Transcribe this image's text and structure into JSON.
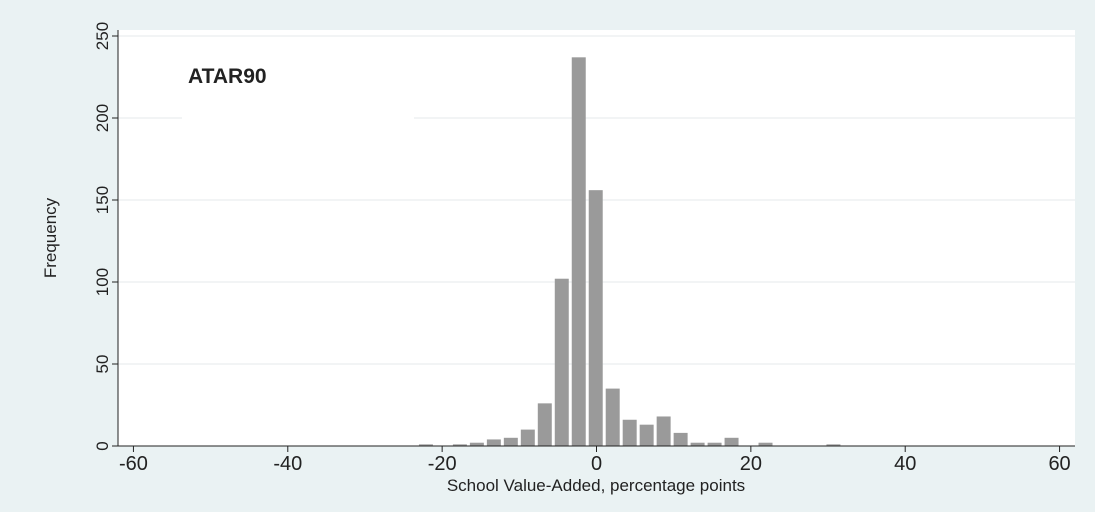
{
  "chart_data": {
    "type": "histogram",
    "annotation": "ATAR90",
    "x_label": "School Value-Added, percentage points",
    "y_label": "Frequency",
    "bins": [
      -23.2,
      -21,
      -18.8,
      -16.6,
      -14.4,
      -12.2,
      -10,
      -7.8,
      -5.6,
      -3.4,
      -1.2,
      1,
      3.2,
      5.4,
      7.6,
      9.8,
      12,
      14.2,
      16.4,
      18.6,
      20.8,
      23,
      25.2,
      27.4,
      29.6,
      31.8
    ],
    "values": [
      1,
      0,
      1,
      2,
      4,
      5,
      10,
      26,
      102,
      237,
      156,
      35,
      16,
      13,
      18,
      8,
      2,
      2,
      5,
      0,
      2,
      0,
      0,
      0,
      1
    ],
    "color": "#9a9a9a",
    "xlim": [
      -62,
      62
    ],
    "xticks": [
      -60,
      -40,
      -20,
      0,
      20,
      40,
      60
    ],
    "ylim": [
      0,
      250
    ],
    "yticks": [
      0,
      50,
      100,
      150,
      200,
      250
    ],
    "grid": true
  }
}
